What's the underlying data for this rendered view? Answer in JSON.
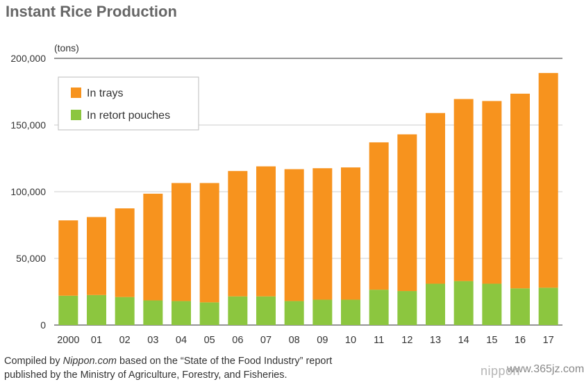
{
  "title": "Instant Rice Production",
  "chart_data": {
    "type": "bar",
    "stacked": true,
    "title": "Instant Rice Production",
    "unit_label": "(tons)",
    "categories": [
      "2000",
      "01",
      "02",
      "03",
      "04",
      "05",
      "06",
      "07",
      "08",
      "09",
      "10",
      "11",
      "12",
      "13",
      "14",
      "15",
      "16",
      "17"
    ],
    "series": [
      {
        "name": "In retort pouches",
        "color": "#8cc63f",
        "values": [
          22000,
          22500,
          21000,
          18500,
          18000,
          17000,
          21500,
          21500,
          18000,
          19000,
          19000,
          26500,
          25500,
          31000,
          33000,
          31000,
          27500,
          28000
        ]
      },
      {
        "name": "In trays",
        "color": "#f7931e",
        "values": [
          56500,
          58500,
          66500,
          80000,
          88500,
          89500,
          94000,
          97500,
          98900,
          98600,
          99200,
          110500,
          117500,
          128000,
          136500,
          137000,
          146000,
          161000
        ]
      }
    ],
    "legend_order": [
      "In trays",
      "In retort pouches"
    ],
    "legend_position": "top-left",
    "ylim": [
      0,
      200000
    ],
    "yticks": [
      0,
      50000,
      100000,
      150000,
      200000
    ],
    "ytick_labels": [
      "0",
      "50,000",
      "100,000",
      "150,000",
      "200,000"
    ],
    "grid": true
  },
  "footer": {
    "prefix": "Compiled by ",
    "source": "Nippon.com",
    "line1_rest": " based on the “State of the Food Industry” report",
    "line2": "published by the Ministry of Agriculture, Forestry, and Fisheries."
  },
  "logo_text": "nippon",
  "watermark_text": "www.365jz.com"
}
